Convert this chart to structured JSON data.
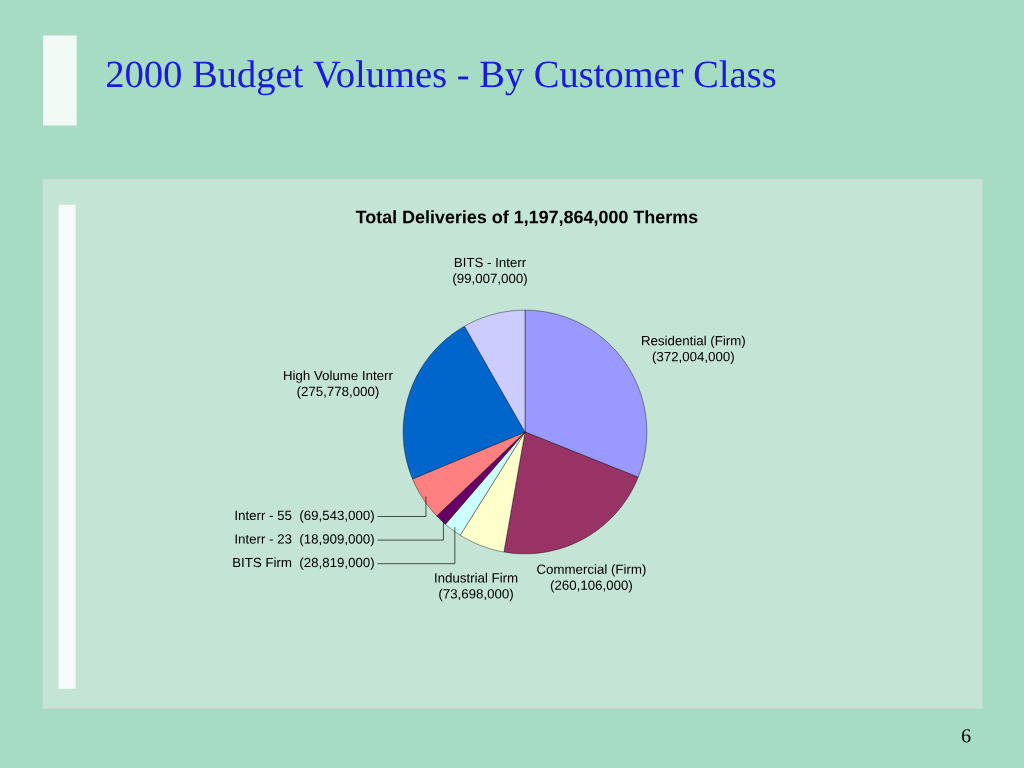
{
  "chart_data": {
    "type": "pie",
    "title": "2000 Budget Volumes - By Customer Class",
    "subtitle": "Total Deliveries of 1,197,864,000 Therms",
    "categories": [
      "Residential (Firm)",
      "Commercial (Firm)",
      "Industrial Firm",
      "BITS Firm",
      "Interr - 23",
      "Interr - 55",
      "High Volume Interr",
      "BITS - Interr"
    ],
    "values": [
      372004000,
      260106000,
      73698000,
      28819000,
      18909000,
      69543000,
      275778000,
      99007000
    ],
    "colors": [
      "#9999ff",
      "#993366",
      "#ffffcc",
      "#ccffff",
      "#660066",
      "#ff8080",
      "#0066cc",
      "#ccccff"
    ],
    "value_labels": [
      "(372,004,000)",
      "(260,106,000)",
      "(73,698,000)",
      "(28,819,000)",
      "(18,909,000)",
      "(69,543,000)",
      "(275,778,000)",
      "(99,007,000)"
    ],
    "annotations": [
      "6"
    ]
  }
}
